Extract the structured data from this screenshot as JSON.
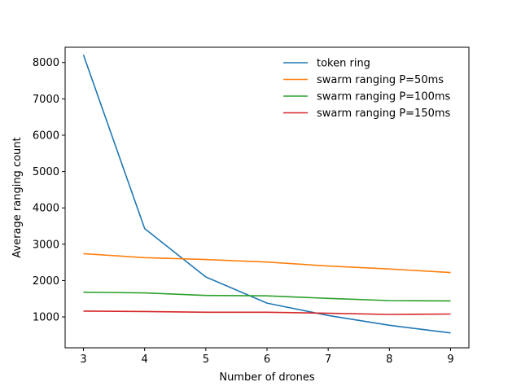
{
  "chart_data": {
    "type": "line",
    "title": "",
    "xlabel": "Number of drones",
    "ylabel": "Average ranging count",
    "x": [
      3,
      4,
      5,
      6,
      7,
      8,
      9
    ],
    "xlim": [
      2.7,
      9.3
    ],
    "ylim": [
      150,
      8420
    ],
    "xticks": [
      "3",
      "4",
      "5",
      "6",
      "7",
      "8",
      "9"
    ],
    "yticks": [
      "1000",
      "2000",
      "3000",
      "4000",
      "5000",
      "6000",
      "7000",
      "8000"
    ],
    "grid": false,
    "legend_position": "top-right",
    "series": [
      {
        "name": "token ring",
        "color": "#1f77b4",
        "values": [
          8210,
          3430,
          2100,
          1380,
          1040,
          770,
          560
        ]
      },
      {
        "name": "swarm ranging P=50ms",
        "color": "#ff7f0e",
        "values": [
          2740,
          2630,
          2580,
          2510,
          2400,
          2320,
          2220
        ]
      },
      {
        "name": "swarm ranging P=100ms",
        "color": "#2ca02c",
        "values": [
          1680,
          1660,
          1590,
          1580,
          1510,
          1450,
          1440
        ]
      },
      {
        "name": "swarm ranging P=150ms",
        "color": "#d62728",
        "values": [
          1160,
          1150,
          1130,
          1130,
          1100,
          1070,
          1080
        ]
      }
    ]
  }
}
